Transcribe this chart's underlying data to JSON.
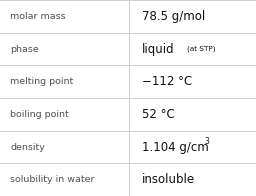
{
  "rows": [
    {
      "label": "molar mass",
      "value": "78.5 g/mol",
      "special": null
    },
    {
      "label": "phase",
      "value": "liquid",
      "special": "phase"
    },
    {
      "label": "melting point",
      "value": "−112 °C",
      "special": null
    },
    {
      "label": "boiling point",
      "value": "52 °C",
      "special": null
    },
    {
      "label": "density",
      "value": "1.104 g/cm",
      "special": "density"
    },
    {
      "label": "solubility in water",
      "value": "insoluble",
      "special": null
    }
  ],
  "bg_color": "#ffffff",
  "line_color": "#c8c8c8",
  "label_color": "#505050",
  "value_color": "#111111",
  "label_fontsize": 6.8,
  "value_fontsize": 8.5,
  "stp_fontsize": 5.2,
  "super_fontsize": 5.5,
  "col_split": 0.505
}
